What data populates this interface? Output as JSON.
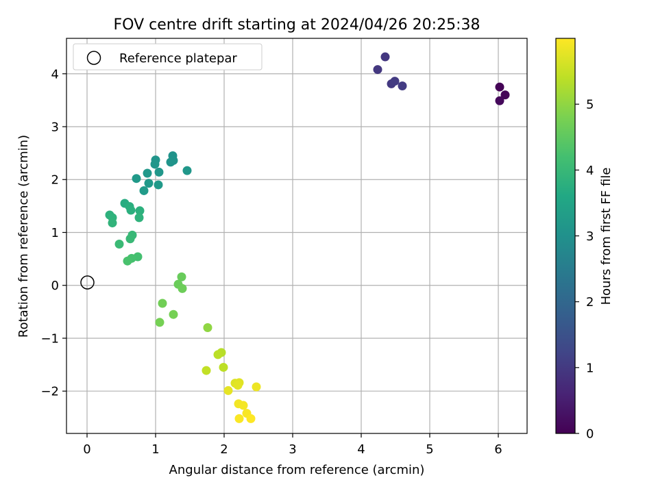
{
  "chart_data": {
    "type": "scatter",
    "title": "FOV centre drift starting at 2024/04/26 20:25:38",
    "xlabel": "Angular distance from reference (arcmin)",
    "ylabel": "Rotation from reference (arcmin)",
    "xlim": [
      -0.3,
      6.42
    ],
    "ylim": [
      -2.8,
      4.67
    ],
    "xticks": [
      0,
      1,
      2,
      3,
      4,
      5,
      6
    ],
    "yticks": [
      -2,
      -1,
      0,
      1,
      2,
      3,
      4
    ],
    "xtick_labels": [
      "0",
      "1",
      "2",
      "3",
      "4",
      "5",
      "6"
    ],
    "ytick_labels": [
      "−2",
      "−1",
      "0",
      "1",
      "2",
      "3",
      "4"
    ],
    "grid": true,
    "legend": {
      "location": "top-left",
      "entries": [
        {
          "label": "Reference platepar",
          "marker": "hollow-circle"
        }
      ]
    },
    "reference_point": {
      "x": 0,
      "y": 0
    },
    "colorbar": {
      "label": "Hours from first FF file",
      "colormap": "viridis",
      "range": [
        0,
        6.0
      ],
      "ticks": [
        0,
        1,
        2,
        3,
        4,
        5
      ],
      "tick_labels": [
        "0",
        "1",
        "2",
        "3",
        "4",
        "5"
      ]
    },
    "points": [
      {
        "x": 6.02,
        "y": 3.75,
        "hours": 0.03
      },
      {
        "x": 6.1,
        "y": 3.6,
        "hours": 0.08
      },
      {
        "x": 6.02,
        "y": 3.49,
        "hours": 0.13
      },
      {
        "x": 4.35,
        "y": 4.32,
        "hours": 0.95
      },
      {
        "x": 4.24,
        "y": 4.08,
        "hours": 0.98
      },
      {
        "x": 4.44,
        "y": 3.81,
        "hours": 1.0
      },
      {
        "x": 4.49,
        "y": 3.86,
        "hours": 1.03
      },
      {
        "x": 4.6,
        "y": 3.77,
        "hours": 1.05
      },
      {
        "x": 1.25,
        "y": 2.45,
        "hours": 3.05
      },
      {
        "x": 1.22,
        "y": 2.33,
        "hours": 3.07
      },
      {
        "x": 1.26,
        "y": 2.36,
        "hours": 3.08
      },
      {
        "x": 1.0,
        "y": 2.37,
        "hours": 3.1
      },
      {
        "x": 0.99,
        "y": 2.29,
        "hours": 3.12
      },
      {
        "x": 1.46,
        "y": 2.17,
        "hours": 3.15
      },
      {
        "x": 1.05,
        "y": 2.14,
        "hours": 3.15
      },
      {
        "x": 0.88,
        "y": 2.12,
        "hours": 3.18
      },
      {
        "x": 0.72,
        "y": 2.02,
        "hours": 3.2
      },
      {
        "x": 0.9,
        "y": 1.93,
        "hours": 3.2
      },
      {
        "x": 1.04,
        "y": 1.9,
        "hours": 3.22
      },
      {
        "x": 0.83,
        "y": 1.79,
        "hours": 3.25
      },
      {
        "x": 0.55,
        "y": 1.55,
        "hours": 3.7
      },
      {
        "x": 0.62,
        "y": 1.49,
        "hours": 3.75
      },
      {
        "x": 0.64,
        "y": 1.42,
        "hours": 3.78
      },
      {
        "x": 0.77,
        "y": 1.41,
        "hours": 3.8
      },
      {
        "x": 0.33,
        "y": 1.33,
        "hours": 3.82
      },
      {
        "x": 0.37,
        "y": 1.28,
        "hours": 3.85
      },
      {
        "x": 0.76,
        "y": 1.28,
        "hours": 3.85
      },
      {
        "x": 0.37,
        "y": 1.18,
        "hours": 3.88
      },
      {
        "x": 0.66,
        "y": 0.95,
        "hours": 4.0
      },
      {
        "x": 0.63,
        "y": 0.88,
        "hours": 4.02
      },
      {
        "x": 0.47,
        "y": 0.78,
        "hours": 4.05
      },
      {
        "x": 0.74,
        "y": 0.54,
        "hours": 4.2
      },
      {
        "x": 0.65,
        "y": 0.51,
        "hours": 4.22
      },
      {
        "x": 0.59,
        "y": 0.46,
        "hours": 4.25
      },
      {
        "x": 1.38,
        "y": 0.16,
        "hours": 4.6
      },
      {
        "x": 1.33,
        "y": 0.02,
        "hours": 4.62
      },
      {
        "x": 1.39,
        "y": -0.06,
        "hours": 4.65
      },
      {
        "x": 1.1,
        "y": -0.34,
        "hours": 4.7
      },
      {
        "x": 1.26,
        "y": -0.55,
        "hours": 4.75
      },
      {
        "x": 1.06,
        "y": -0.7,
        "hours": 4.75
      },
      {
        "x": 1.76,
        "y": -0.8,
        "hours": 5.0
      },
      {
        "x": 1.96,
        "y": -1.27,
        "hours": 5.35
      },
      {
        "x": 1.91,
        "y": -1.31,
        "hours": 5.38
      },
      {
        "x": 1.99,
        "y": -1.55,
        "hours": 5.4
      },
      {
        "x": 1.74,
        "y": -1.61,
        "hours": 5.45
      },
      {
        "x": 2.16,
        "y": -1.85,
        "hours": 5.7
      },
      {
        "x": 2.22,
        "y": -1.84,
        "hours": 5.72
      },
      {
        "x": 2.2,
        "y": -1.89,
        "hours": 5.75
      },
      {
        "x": 2.47,
        "y": -1.92,
        "hours": 5.85
      },
      {
        "x": 2.06,
        "y": -1.99,
        "hours": 5.78
      },
      {
        "x": 2.21,
        "y": -2.24,
        "hours": 5.9
      },
      {
        "x": 2.28,
        "y": -2.27,
        "hours": 5.92
      },
      {
        "x": 2.33,
        "y": -2.42,
        "hours": 5.95
      },
      {
        "x": 2.22,
        "y": -2.52,
        "hours": 5.97
      },
      {
        "x": 2.39,
        "y": -2.52,
        "hours": 6.0
      }
    ]
  }
}
